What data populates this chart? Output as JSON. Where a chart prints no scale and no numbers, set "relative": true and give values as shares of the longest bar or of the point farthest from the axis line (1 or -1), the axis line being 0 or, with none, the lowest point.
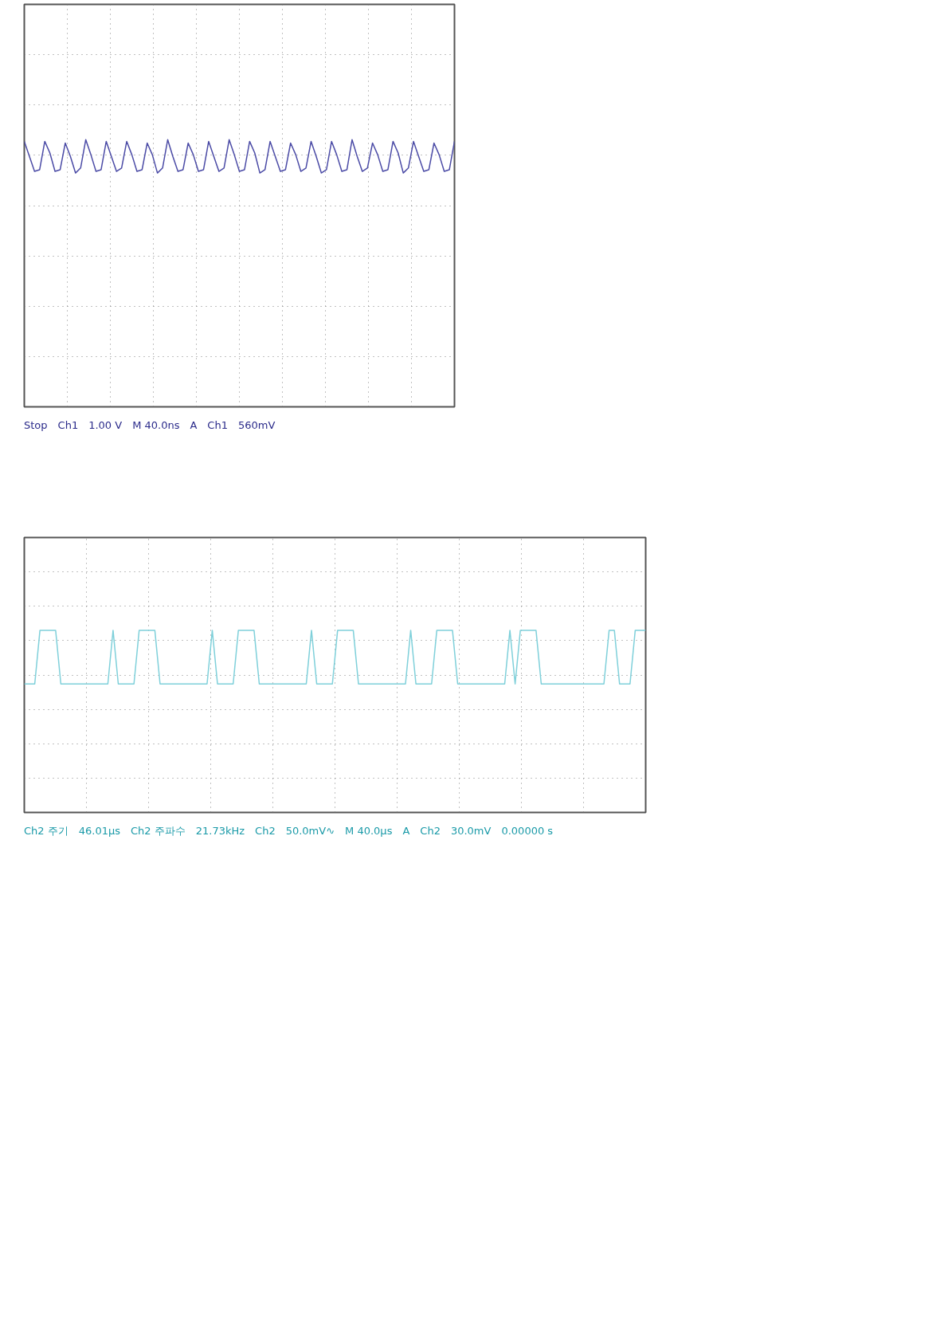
{
  "chart_data": [
    {
      "type": "line",
      "relative": true,
      "grid": true,
      "tick_labels": false,
      "categories": [
        null,
        null,
        null,
        null,
        null,
        null,
        null,
        null,
        null,
        null,
        null,
        null,
        null,
        null,
        null,
        null,
        null,
        null,
        null,
        null,
        null,
        null,
        null,
        null,
        null,
        null,
        null,
        null,
        null,
        null,
        null,
        null,
        null,
        null,
        null,
        null,
        null,
        null,
        null,
        null,
        null,
        null,
        null,
        null,
        null,
        null,
        null,
        null,
        null,
        null,
        null,
        null,
        null,
        null,
        null,
        null,
        null,
        null,
        null,
        null,
        null,
        null,
        null,
        null,
        null,
        null,
        null,
        null,
        null,
        null,
        null,
        null,
        null,
        null,
        null,
        null,
        null,
        null,
        null,
        null,
        null,
        null,
        null,
        null,
        null
      ],
      "series": [
        {
          "color": "#4b4ba6",
          "values": [
            0.99,
            0.9,
            0.81,
            0.82,
            0.99,
            0.92,
            0.81,
            0.82,
            0.98,
            0.9,
            0.8,
            0.83,
            1.0,
            0.91,
            0.81,
            0.82,
            0.99,
            0.9,
            0.81,
            0.83,
            0.99,
            0.91,
            0.81,
            0.82,
            0.98,
            0.91,
            0.8,
            0.83,
            1.0,
            0.9,
            0.81,
            0.82,
            0.98,
            0.91,
            0.81,
            0.82,
            0.99,
            0.9,
            0.81,
            0.83,
            1.0,
            0.91,
            0.81,
            0.82,
            0.99,
            0.92,
            0.8,
            0.82,
            0.99,
            0.9,
            0.81,
            0.82,
            0.98,
            0.91,
            0.81,
            0.83,
            0.99,
            0.9,
            0.8,
            0.82,
            0.99,
            0.91,
            0.81,
            0.82,
            1.0,
            0.9,
            0.81,
            0.83,
            0.98,
            0.91,
            0.81,
            0.82,
            0.99,
            0.92,
            0.8,
            0.83,
            0.99,
            0.9,
            0.81,
            0.82,
            0.98,
            0.91,
            0.81,
            0.82,
            0.99
          ]
        }
      ],
      "annotations": [
        "Stop",
        "Ch1",
        "1.00 V",
        "M 40.0ns",
        "A",
        "Ch1",
        "560mV"
      ]
    },
    {
      "type": "line",
      "relative": true,
      "grid": true,
      "tick_labels": false,
      "categories": [
        null,
        null,
        null,
        null,
        null,
        null,
        null,
        null,
        null,
        null,
        null,
        null,
        null,
        null,
        null,
        null,
        null,
        null,
        null,
        null,
        null,
        null,
        null,
        null,
        null,
        null,
        null,
        null,
        null,
        null,
        null,
        null,
        null,
        null,
        null,
        null,
        null,
        null,
        null,
        null,
        null,
        null,
        null,
        null,
        null,
        null,
        null,
        null,
        null,
        null,
        null,
        null,
        null,
        null,
        null,
        null,
        null,
        null,
        null,
        null,
        null,
        null,
        null,
        null,
        null,
        null,
        null,
        null,
        null,
        null,
        null,
        null,
        null,
        null,
        null,
        null,
        null,
        null,
        null,
        null,
        null,
        null,
        null,
        null,
        null,
        null,
        null,
        null,
        null,
        null,
        null,
        null,
        null,
        null,
        null,
        null,
        null,
        null,
        null,
        null,
        null,
        null,
        null,
        null,
        null,
        null,
        null,
        null,
        null,
        null,
        null,
        null,
        null,
        null,
        null,
        null,
        null,
        null,
        null,
        null
      ],
      "series": [
        {
          "color": "#7fd0da",
          "values": [
            -0.2,
            -0.2,
            -0.2,
            1,
            1,
            1,
            1,
            -0.2,
            -0.2,
            -0.2,
            -0.2,
            -0.2,
            -0.2,
            -0.2,
            -0.2,
            -0.2,
            -0.2,
            1,
            -0.2,
            -0.2,
            -0.2,
            -0.2,
            1,
            1,
            1,
            1,
            -0.2,
            -0.2,
            -0.2,
            -0.2,
            -0.2,
            -0.2,
            -0.2,
            -0.2,
            -0.2,
            -0.2,
            1,
            -0.2,
            -0.2,
            -0.2,
            -0.2,
            1,
            1,
            1,
            1,
            -0.2,
            -0.2,
            -0.2,
            -0.2,
            -0.2,
            -0.2,
            -0.2,
            -0.2,
            -0.2,
            -0.2,
            1,
            -0.2,
            -0.2,
            -0.2,
            -0.2,
            1,
            1,
            1,
            1,
            -0.2,
            -0.2,
            -0.2,
            -0.2,
            -0.2,
            -0.2,
            -0.2,
            -0.2,
            -0.2,
            -0.2,
            1,
            -0.2,
            -0.2,
            -0.2,
            -0.2,
            1,
            1,
            1,
            1,
            -0.2,
            -0.2,
            -0.2,
            -0.2,
            -0.2,
            -0.2,
            -0.2,
            -0.2,
            -0.2,
            -0.2,
            1,
            -0.2,
            1,
            1,
            1,
            1,
            -0.2,
            -0.2,
            -0.2,
            -0.2,
            -0.2,
            -0.2,
            -0.2,
            -0.2,
            -0.2,
            -0.2,
            -0.2,
            -0.2,
            -0.2,
            1,
            1,
            -0.2,
            -0.2,
            -0.2,
            1,
            1,
            1
          ]
        }
      ],
      "annotations": [
        "Ch2 주기",
        "46.01µs",
        "Ch2 주파수",
        "21.73kHz",
        "Ch2",
        "50.0mV∿",
        "M 40.0µs",
        "A",
        "Ch2",
        "30.0mV",
        "0.00000 s"
      ]
    }
  ]
}
